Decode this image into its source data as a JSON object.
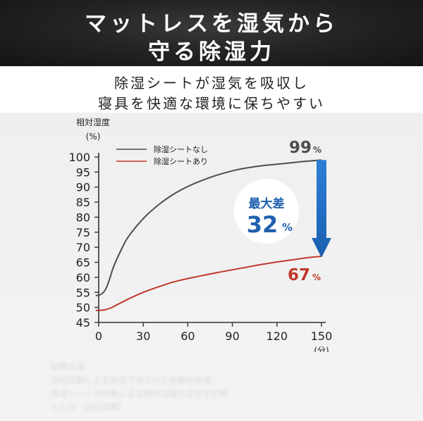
{
  "header": {
    "line1": "マットレスを湿気から",
    "line2": "守る除湿力"
  },
  "subheading": {
    "line1": "除湿シートが湿気を吸収し",
    "line2": "寝具を快適な環境に保ちやすい"
  },
  "colors": {
    "series_without": "#4d4d4d",
    "series_with": "#c0392b",
    "arrow": "#1f6fc5",
    "callout_text": "#1f5fae"
  },
  "chart_data": {
    "type": "line",
    "ylabel_line1": "相対湿度",
    "ylabel_line2": "(%)",
    "xlabel": "(分)",
    "xlim": [
      0,
      150
    ],
    "ylim": [
      45,
      100
    ],
    "x_ticks": [
      0,
      30,
      60,
      90,
      120,
      150
    ],
    "y_ticks": [
      45,
      50,
      55,
      60,
      65,
      70,
      75,
      80,
      85,
      90,
      95,
      100
    ],
    "grid": false,
    "legend_position": "top-left",
    "series": [
      {
        "name": "除湿シートなし",
        "color": "#4d4d4d",
        "points": [
          [
            -2,
            54
          ],
          [
            0,
            54
          ],
          [
            2,
            54.5
          ],
          [
            4,
            55.5
          ],
          [
            6,
            57.5
          ],
          [
            8,
            60.5
          ],
          [
            10,
            63.5
          ],
          [
            15,
            69
          ],
          [
            20,
            73.5
          ],
          [
            30,
            79.5
          ],
          [
            40,
            84
          ],
          [
            50,
            87.5
          ],
          [
            60,
            90.2
          ],
          [
            70,
            92.3
          ],
          [
            80,
            94
          ],
          [
            90,
            95.4
          ],
          [
            100,
            96.4
          ],
          [
            110,
            97.1
          ],
          [
            120,
            97.6
          ],
          [
            130,
            98.1
          ],
          [
            140,
            98.6
          ],
          [
            150,
            99
          ]
        ]
      },
      {
        "name": "除湿シートあり",
        "color": "#c0392b",
        "points": [
          [
            -2,
            49
          ],
          [
            0,
            49
          ],
          [
            4,
            49.2
          ],
          [
            8,
            49.8
          ],
          [
            12,
            50.8
          ],
          [
            20,
            52.8
          ],
          [
            30,
            55
          ],
          [
            40,
            56.8
          ],
          [
            50,
            58.4
          ],
          [
            60,
            59.6
          ],
          [
            70,
            60.6
          ],
          [
            80,
            61.6
          ],
          [
            90,
            62.5
          ],
          [
            100,
            63.4
          ],
          [
            110,
            64.3
          ],
          [
            120,
            65.1
          ],
          [
            130,
            65.8
          ],
          [
            140,
            66.5
          ],
          [
            150,
            67
          ]
        ]
      }
    ],
    "annotations": {
      "end_without_value": "99",
      "end_with_value": "67",
      "unit": "%",
      "callout_label": "最大差",
      "callout_value": "32",
      "callout_unit": "%"
    }
  },
  "footnote": {
    "line1": "試験方法",
    "line2": "自社試験による測定で得られた結果の数値",
    "line3": "除湿シートの有無による相対湿度の変化を比較",
    "line4": "たもの（自社試験）"
  }
}
